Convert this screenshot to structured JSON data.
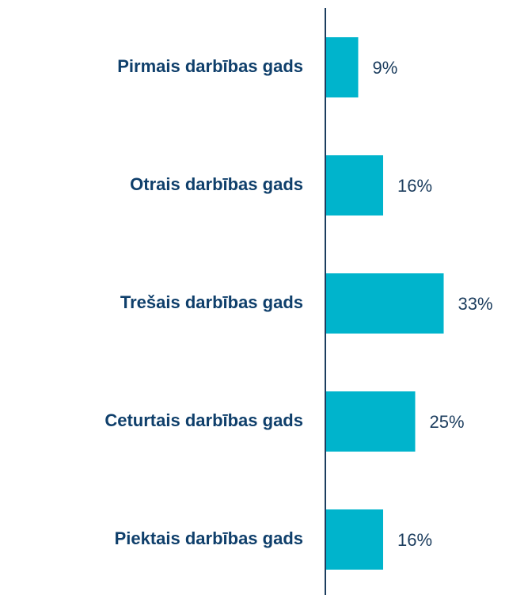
{
  "chart_data": {
    "type": "bar",
    "orientation": "horizontal",
    "categories": [
      "Pirmais darbības gads",
      "Otrais darbības gads",
      "Trešais darbības gads",
      "Ceturtais darbības gads",
      "Piektais darbības gads"
    ],
    "values": [
      9,
      16,
      33,
      25,
      16
    ],
    "value_labels": [
      "9%",
      "16%",
      "33%",
      "25%",
      "16%"
    ],
    "color": "#00b4cc"
  }
}
